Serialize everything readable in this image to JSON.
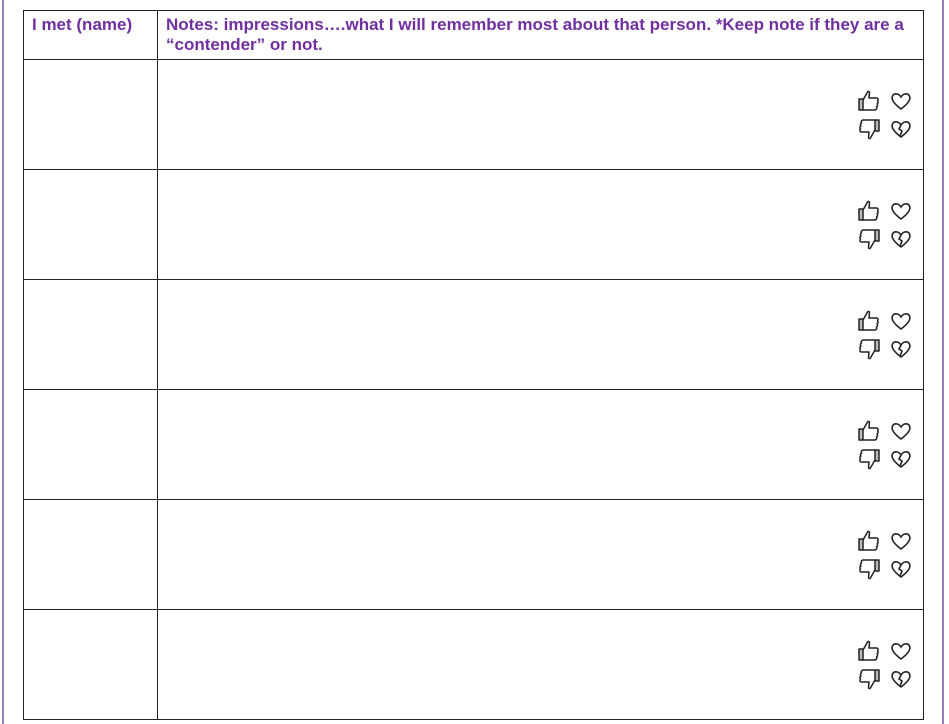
{
  "header": {
    "col1": "I met (name)",
    "col2": "Notes: impressions….what I will remember most about that person. *Keep note if they are a “contender” or not."
  },
  "rows": [
    {
      "name": "",
      "notes": ""
    },
    {
      "name": "",
      "notes": ""
    },
    {
      "name": "",
      "notes": ""
    },
    {
      "name": "",
      "notes": ""
    },
    {
      "name": "",
      "notes": ""
    },
    {
      "name": "",
      "notes": ""
    }
  ],
  "icons": [
    "thumbs-up-icon",
    "heart-icon",
    "thumbs-down-icon",
    "broken-heart-icon"
  ],
  "colors": {
    "header_text": "#7030a0",
    "border": "#222222",
    "margin_line": "#9b7bc0"
  }
}
